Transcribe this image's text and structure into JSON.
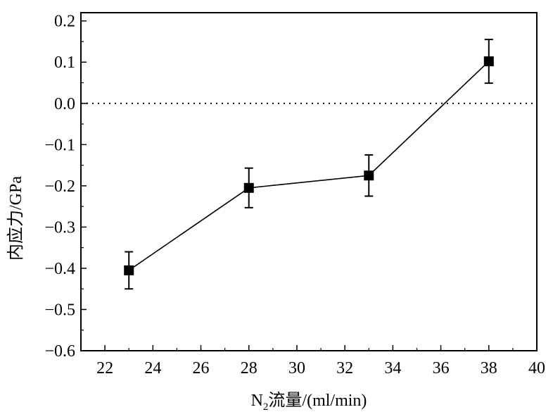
{
  "chart_data": {
    "type": "scatter",
    "xlabel_prefix": "N",
    "xlabel_subscript": "2",
    "xlabel_suffix": "流量/(ml/min)",
    "ylabel": "内应力/GPa",
    "xlim": [
      21,
      40
    ],
    "ylim": [
      -0.6,
      0.22
    ],
    "x_ticks": [
      22,
      24,
      26,
      28,
      30,
      32,
      34,
      36,
      38,
      40
    ],
    "x_tick_labels": [
      "22",
      "24",
      "26",
      "28",
      "30",
      "32",
      "34",
      "36",
      "38",
      "40"
    ],
    "y_ticks": [
      -0.6,
      -0.5,
      -0.4,
      -0.3,
      -0.2,
      -0.1,
      0.0,
      0.1,
      0.2
    ],
    "y_tick_labels": [
      "−0.6",
      "−0.5",
      "−0.4",
      "−0.3",
      "−0.2",
      "−0.1",
      "0.0",
      "0.1",
      "0.2"
    ],
    "reference_line": {
      "y": 0.0,
      "style": "dotted"
    },
    "series": [
      {
        "x": [
          23,
          28,
          33,
          38
        ],
        "y": [
          -0.405,
          -0.205,
          -0.175,
          0.102
        ],
        "error": [
          0.045,
          0.048,
          0.05,
          0.053
        ],
        "marker": "square",
        "color": "#000000",
        "line": "solid"
      }
    ],
    "grid": false,
    "legend": "none"
  }
}
